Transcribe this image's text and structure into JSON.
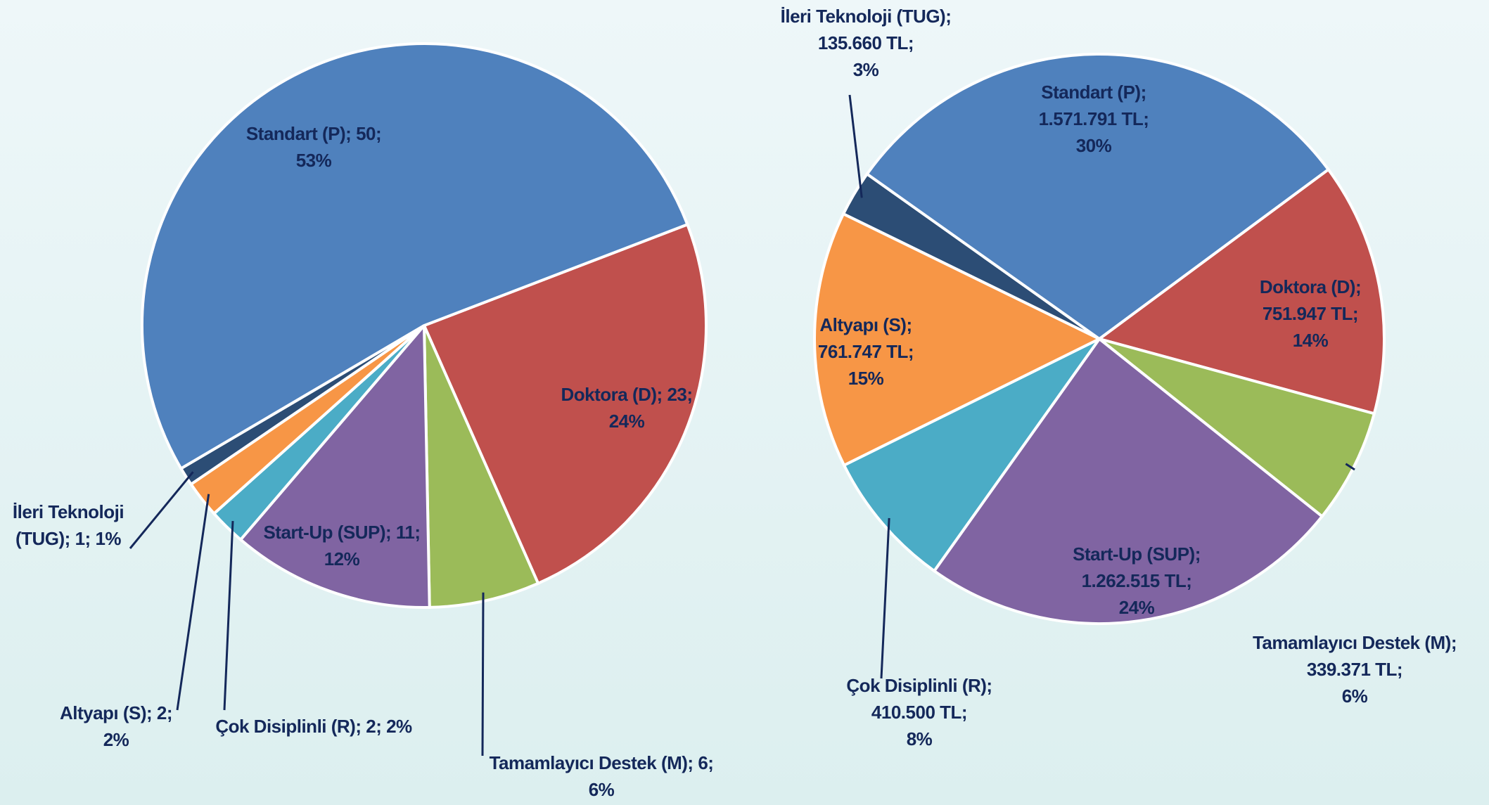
{
  "chart_data": [
    {
      "type": "pie",
      "categories": [
        "Doktora (D);",
        "Tamamlayıcı Destek (M);",
        "Start-Up (SUP);",
        "Çok Disiplinli (R);",
        "Altyapı (S);",
        "İleri Teknoloji (TUG);",
        "Standart (P);"
      ],
      "values": [
        23,
        6,
        11,
        2,
        2,
        1,
        50
      ],
      "value_labels": [
        "23;",
        "6;",
        "11;",
        "2;",
        "2;",
        "1;",
        "50;"
      ],
      "percent_labels": [
        "24%",
        "6%",
        "12%",
        "2%",
        "2%",
        "1%",
        "53%"
      ],
      "colors": [
        "#c0504d",
        "#9bbb59",
        "#8064a2",
        "#4bacc6",
        "#f79646",
        "#2c4d75",
        "#4f81bd"
      ]
    },
    {
      "type": "pie",
      "categories": [
        "Doktora (D);",
        "Tamamlayıcı Destek (M);",
        "Start-Up (SUP);",
        "Çok Disiplinli (R);",
        "Altyapı (S);",
        "İleri Teknoloji (TUG);",
        "Standart (P);"
      ],
      "values": [
        751947,
        339371,
        1262515,
        410500,
        761747,
        135660,
        1571791
      ],
      "value_labels": [
        "751.947 TL;",
        "339.371 TL;",
        "1.262.515 TL;",
        "410.500 TL;",
        "761.747 TL;",
        "135.660 TL;",
        "1.571.791 TL;"
      ],
      "percent_labels": [
        "14%",
        "6%",
        "24%",
        "8%",
        "15%",
        "3%",
        "30%"
      ],
      "colors": [
        "#c0504d",
        "#9bbb59",
        "#8064a2",
        "#4bacc6",
        "#f79646",
        "#2c4d75",
        "#4f81bd"
      ]
    }
  ]
}
